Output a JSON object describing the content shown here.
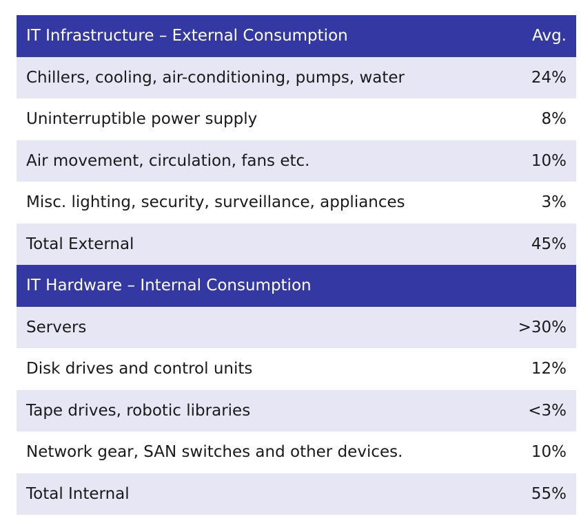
{
  "sections": [
    {
      "header": {
        "label": "IT Infrastructure – External Consumption",
        "value": "Avg."
      },
      "rows": [
        {
          "label": "Chillers, cooling, air-conditioning, pumps, water",
          "value": "24%"
        },
        {
          "label": "Uninterruptible power supply",
          "value": "8%"
        },
        {
          "label": "Air movement, circulation, fans etc.",
          "value": "10%"
        },
        {
          "label": "Misc. lighting, security, surveillance, appliances",
          "value": "3%"
        },
        {
          "label": "Total External",
          "value": "45%"
        }
      ]
    },
    {
      "header": {
        "label": "IT Hardware – Internal Consumption",
        "value": ""
      },
      "rows": [
        {
          "label": "Servers",
          "value": ">30%"
        },
        {
          "label": "Disk drives and control units",
          "value": "12%"
        },
        {
          "label": "Tape drives, robotic libraries",
          "value": "<3%"
        },
        {
          "label": "Network gear, SAN switches and other devices.",
          "value": "10%"
        },
        {
          "label": "Total Internal",
          "value": "55%"
        }
      ]
    }
  ],
  "colors": {
    "header_bg": "#3338a3",
    "header_text": "#ffffff",
    "row_shaded": "#e6e6f4",
    "row_plain": "#ffffff",
    "text": "#1a1a1a"
  }
}
